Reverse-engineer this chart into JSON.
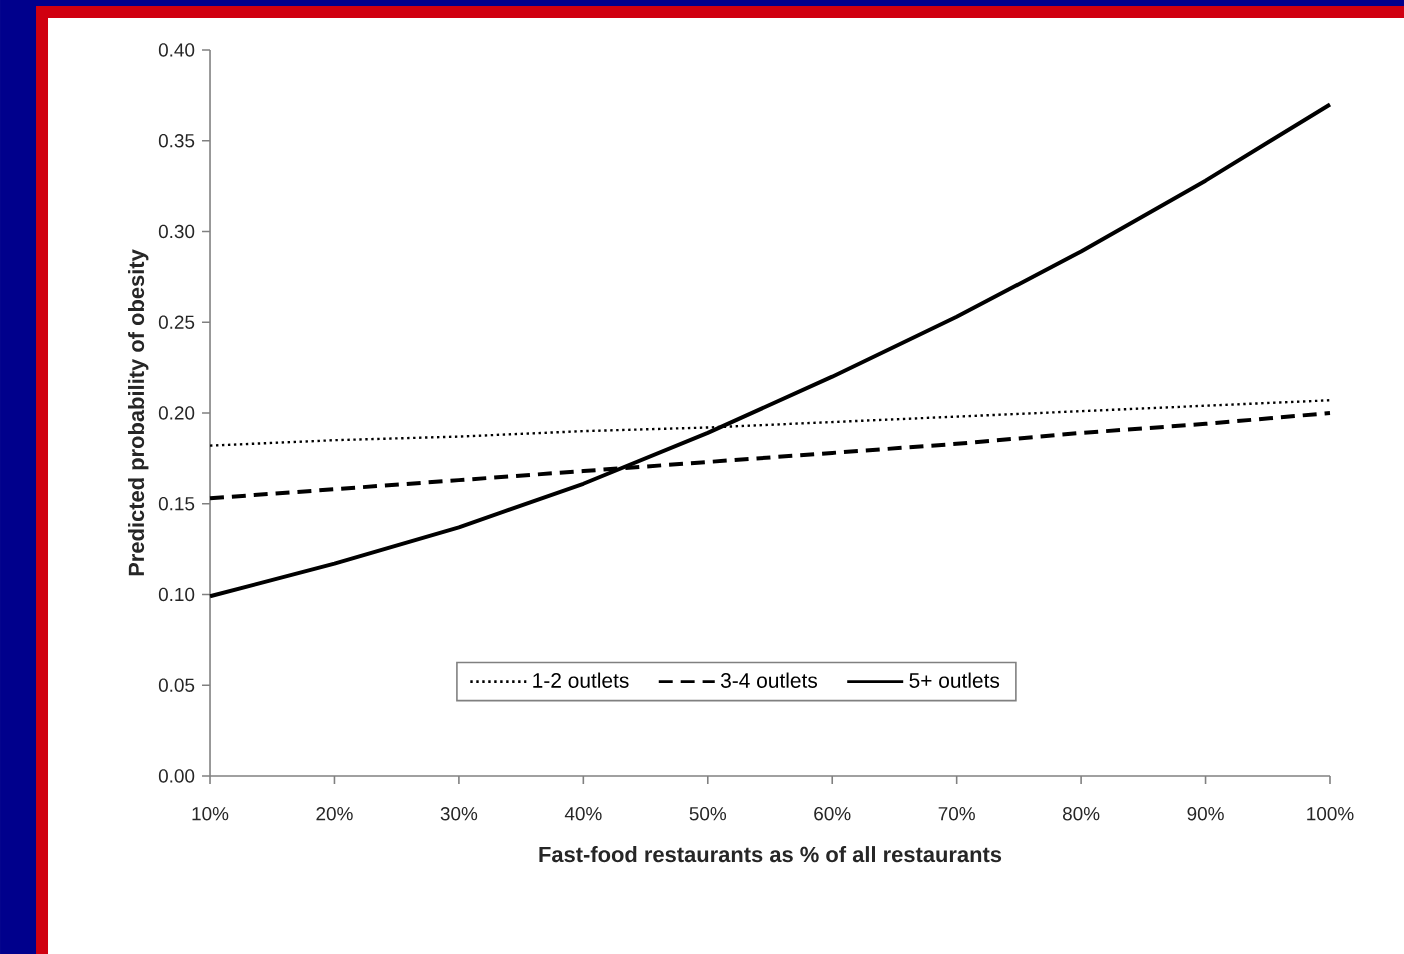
{
  "chart_data": {
    "type": "line",
    "xlabel": "Fast-food restaurants as % of all restaurants",
    "ylabel": "Predicted probability of obesity",
    "x": [
      10,
      20,
      30,
      40,
      50,
      60,
      70,
      80,
      90,
      100
    ],
    "series": [
      {
        "name": "1-2 outlets",
        "color": "#000000",
        "line_style": "dotted",
        "values": [
          0.182,
          0.185,
          0.187,
          0.19,
          0.192,
          0.195,
          0.198,
          0.201,
          0.204,
          0.207
        ]
      },
      {
        "name": "3-4 outlets",
        "color": "#000000",
        "line_style": "dashed",
        "values": [
          0.153,
          0.158,
          0.163,
          0.168,
          0.173,
          0.178,
          0.183,
          0.189,
          0.194,
          0.2
        ]
      },
      {
        "name": "5+ outlets",
        "color": "#000000",
        "line_style": "solid",
        "values": [
          0.099,
          0.117,
          0.137,
          0.161,
          0.189,
          0.22,
          0.253,
          0.289,
          0.328,
          0.37
        ]
      }
    ],
    "xlim": [
      10,
      100
    ],
    "ylim": [
      0,
      0.4
    ],
    "xticks": [
      {
        "value": 10,
        "label": "10%"
      },
      {
        "value": 20,
        "label": "20%"
      },
      {
        "value": 30,
        "label": "30%"
      },
      {
        "value": 40,
        "label": "40%"
      },
      {
        "value": 50,
        "label": "50%"
      },
      {
        "value": 60,
        "label": "60%"
      },
      {
        "value": 70,
        "label": "70%"
      },
      {
        "value": 80,
        "label": "80%"
      },
      {
        "value": 90,
        "label": "90%"
      },
      {
        "value": 100,
        "label": "100%"
      }
    ],
    "yticks": [
      {
        "value": 0,
        "label": "0.00"
      },
      {
        "value": 0.05,
        "label": "0.05"
      },
      {
        "value": 0.1,
        "label": "0.10"
      },
      {
        "value": 0.15,
        "label": "0.15"
      },
      {
        "value": 0.2,
        "label": "0.20"
      },
      {
        "value": 0.25,
        "label": "0.25"
      },
      {
        "value": 0.3,
        "label": "0.30"
      },
      {
        "value": 0.35,
        "label": "0.35"
      },
      {
        "value": 0.4,
        "label": "0.40"
      }
    ],
    "legend": "bottom",
    "grid": false,
    "marker": "none"
  }
}
